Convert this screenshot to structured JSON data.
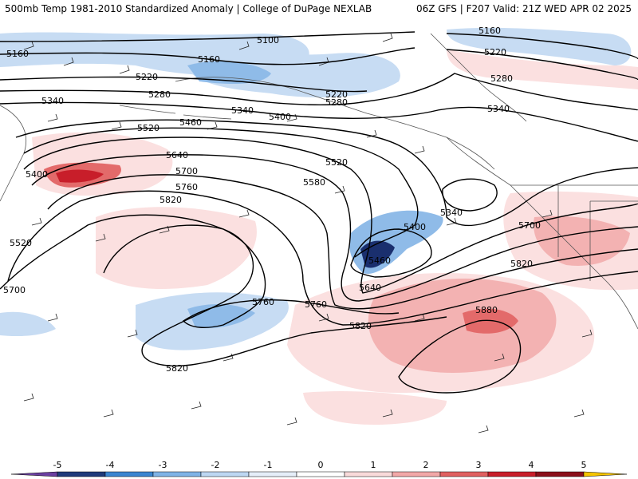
{
  "header": {
    "left_title": "500mb Temp 1981-2010 Standardized Anomaly | College of DuPage NEXLAB",
    "right_title": "06Z GFS | F207 Valid: 21Z WED APR 02 2025"
  },
  "contour_labels": [
    {
      "text": "5100"
    },
    {
      "text": "5160"
    },
    {
      "text": "5160"
    },
    {
      "text": "5160"
    },
    {
      "text": "5220"
    },
    {
      "text": "5220"
    },
    {
      "text": "5220"
    },
    {
      "text": "5280"
    },
    {
      "text": "5280"
    },
    {
      "text": "5280"
    },
    {
      "text": "5340"
    },
    {
      "text": "5340"
    },
    {
      "text": "5340"
    },
    {
      "text": "5340"
    },
    {
      "text": "5400"
    },
    {
      "text": "5400"
    },
    {
      "text": "5400"
    },
    {
      "text": "5460"
    },
    {
      "text": "5460"
    },
    {
      "text": "5520"
    },
    {
      "text": "5520"
    },
    {
      "text": "5520"
    },
    {
      "text": "5580"
    },
    {
      "text": "5640"
    },
    {
      "text": "5640"
    },
    {
      "text": "5700"
    },
    {
      "text": "5700"
    },
    {
      "text": "5700"
    },
    {
      "text": "5760"
    },
    {
      "text": "5760"
    },
    {
      "text": "5760"
    },
    {
      "text": "5820"
    },
    {
      "text": "5820"
    },
    {
      "text": "5820"
    },
    {
      "text": "5820"
    },
    {
      "text": "5880"
    }
  ],
  "colorbar": {
    "tick_labels": [
      "-5",
      "-4",
      "-3",
      "-2",
      "-1",
      "0",
      "1",
      "2",
      "3",
      "4",
      "5"
    ],
    "colors": [
      "#6a3fa0",
      "#1f3a7a",
      "#3a85d0",
      "#7fb3e6",
      "#bdd7f2",
      "#e5eef9",
      "#ffffff",
      "#f9dada",
      "#f2a8a8",
      "#e06060",
      "#c81e2a",
      "#8a0f1a",
      "#f5c400"
    ]
  },
  "anomaly_colors": {
    "light_blue": "#c7dcf3",
    "mid_blue": "#8fbbe8",
    "blue": "#4a8fd8",
    "dark_blue": "#1a2f6e",
    "light_red": "#fbe0e0",
    "mid_red": "#f3b2b2",
    "red": "#e36a6a",
    "dark_red": "#c81e2a"
  }
}
